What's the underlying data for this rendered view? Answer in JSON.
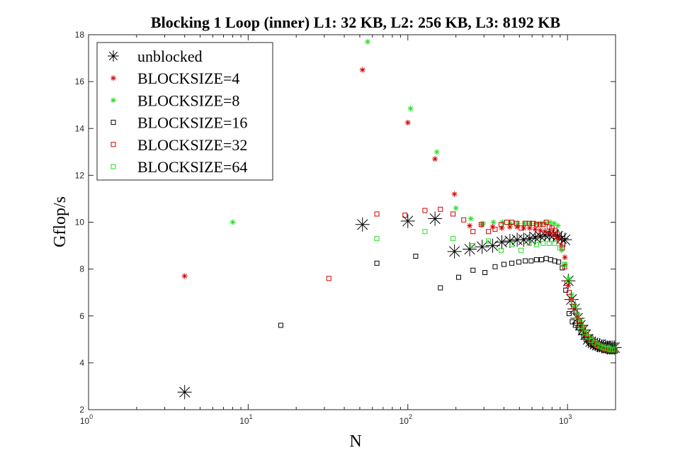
{
  "chart_data": {
    "type": "scatter",
    "title": "Blocking 1 Loop (inner) L1: 32 KB,   L2: 256 KB,   L3: 8192 KB",
    "xlabel": "N",
    "ylabel": "Gflop/s",
    "xscale": "log",
    "xlim": [
      1,
      2000
    ],
    "ylim": [
      2,
      18
    ],
    "x_ticks": [
      {
        "base": "10",
        "exp": "0",
        "value": 1
      },
      {
        "base": "10",
        "exp": "1",
        "value": 10
      },
      {
        "base": "10",
        "exp": "2",
        "value": 100
      },
      {
        "base": "10",
        "exp": "3",
        "value": 1000
      }
    ],
    "y_ticks": [
      "2",
      "4",
      "6",
      "8",
      "10",
      "12",
      "14",
      "16",
      "18"
    ],
    "grid": false,
    "legend_position": "top-left",
    "series": [
      {
        "name": "unblocked",
        "marker": "asterisk-large",
        "color": "#000000",
        "points": [
          [
            4,
            2.75
          ],
          [
            52,
            9.9
          ],
          [
            100,
            10.05
          ],
          [
            148,
            10.15
          ],
          [
            196,
            8.75
          ],
          [
            244,
            8.85
          ],
          [
            292,
            8.95
          ],
          [
            340,
            9.0
          ],
          [
            388,
            9.15
          ],
          [
            436,
            9.2
          ],
          [
            484,
            9.25
          ],
          [
            532,
            9.25
          ],
          [
            580,
            9.3
          ],
          [
            628,
            9.35
          ],
          [
            676,
            9.4
          ],
          [
            724,
            9.45
          ],
          [
            772,
            9.45
          ],
          [
            820,
            9.45
          ],
          [
            868,
            9.4
          ],
          [
            916,
            9.3
          ],
          [
            964,
            9.25
          ],
          [
            1012,
            7.5
          ],
          [
            1060,
            6.7
          ],
          [
            1108,
            6.3
          ],
          [
            1156,
            5.9
          ],
          [
            1204,
            5.6
          ],
          [
            1252,
            5.4
          ],
          [
            1300,
            5.2
          ],
          [
            1348,
            5.0
          ],
          [
            1396,
            4.9
          ],
          [
            1444,
            4.85
          ],
          [
            1492,
            4.8
          ],
          [
            1540,
            4.75
          ],
          [
            1588,
            4.75
          ],
          [
            1636,
            4.7
          ],
          [
            1684,
            4.7
          ],
          [
            1732,
            4.7
          ],
          [
            1780,
            4.65
          ],
          [
            1828,
            4.65
          ],
          [
            1876,
            4.65
          ],
          [
            1924,
            4.65
          ],
          [
            1972,
            4.65
          ]
        ]
      },
      {
        "name": "BLOCKSIZE=4",
        "marker": "asterisk",
        "color": "#d00000",
        "points": [
          [
            4,
            7.7
          ],
          [
            52,
            16.5
          ],
          [
            100,
            14.25
          ],
          [
            148,
            12.7
          ],
          [
            196,
            11.2
          ],
          [
            244,
            9.85
          ],
          [
            292,
            9.9
          ],
          [
            340,
            9.8
          ],
          [
            388,
            9.75
          ],
          [
            436,
            9.8
          ],
          [
            484,
            9.8
          ],
          [
            532,
            9.75
          ],
          [
            580,
            9.75
          ],
          [
            628,
            9.7
          ],
          [
            676,
            9.65
          ],
          [
            724,
            9.6
          ],
          [
            772,
            9.55
          ],
          [
            820,
            9.45
          ],
          [
            868,
            9.3
          ],
          [
            916,
            9.0
          ],
          [
            964,
            8.5
          ],
          [
            1012,
            7.3
          ],
          [
            1060,
            6.7
          ],
          [
            1108,
            6.4
          ],
          [
            1156,
            6.0
          ],
          [
            1204,
            5.7
          ],
          [
            1252,
            5.4
          ],
          [
            1300,
            5.2
          ],
          [
            1348,
            5.0
          ],
          [
            1396,
            4.9
          ],
          [
            1444,
            4.8
          ],
          [
            1492,
            4.75
          ],
          [
            1540,
            4.7
          ],
          [
            1588,
            4.65
          ],
          [
            1636,
            4.6
          ],
          [
            1684,
            4.6
          ],
          [
            1732,
            4.55
          ],
          [
            1780,
            4.55
          ],
          [
            1828,
            4.55
          ],
          [
            1876,
            4.55
          ],
          [
            1924,
            4.55
          ],
          [
            1972,
            4.55
          ]
        ]
      },
      {
        "name": "BLOCKSIZE=8",
        "marker": "asterisk",
        "color": "#22dd22",
        "points": [
          [
            8,
            10.0
          ],
          [
            56,
            17.7
          ],
          [
            104,
            14.85
          ],
          [
            152,
            13.0
          ],
          [
            200,
            10.6
          ],
          [
            248,
            10.15
          ],
          [
            296,
            9.95
          ],
          [
            344,
            10.0
          ],
          [
            392,
            10.0
          ],
          [
            440,
            9.95
          ],
          [
            488,
            9.95
          ],
          [
            536,
            9.95
          ],
          [
            584,
            9.95
          ],
          [
            632,
            9.95
          ],
          [
            680,
            9.95
          ],
          [
            728,
            9.95
          ],
          [
            776,
            10.0
          ],
          [
            824,
            9.95
          ],
          [
            872,
            9.85
          ],
          [
            920,
            8.8
          ],
          [
            968,
            8.2
          ],
          [
            1016,
            7.6
          ],
          [
            1064,
            6.9
          ],
          [
            1112,
            6.4
          ],
          [
            1160,
            6.1
          ],
          [
            1208,
            5.8
          ],
          [
            1256,
            5.5
          ],
          [
            1304,
            5.3
          ],
          [
            1352,
            5.1
          ],
          [
            1400,
            5.0
          ],
          [
            1448,
            4.9
          ],
          [
            1496,
            4.85
          ],
          [
            1544,
            4.8
          ],
          [
            1592,
            4.75
          ],
          [
            1640,
            4.7
          ],
          [
            1688,
            4.7
          ],
          [
            1736,
            4.65
          ],
          [
            1784,
            4.65
          ],
          [
            1832,
            4.65
          ],
          [
            1880,
            4.6
          ],
          [
            1928,
            4.6
          ],
          [
            1976,
            4.6
          ]
        ]
      },
      {
        "name": "BLOCKSIZE=16",
        "marker": "square",
        "color": "#000000",
        "points": [
          [
            16,
            5.6
          ],
          [
            64,
            8.25
          ],
          [
            112,
            8.55
          ],
          [
            160,
            7.2
          ],
          [
            208,
            7.65
          ],
          [
            256,
            7.95
          ],
          [
            304,
            7.85
          ],
          [
            352,
            8.1
          ],
          [
            400,
            8.2
          ],
          [
            448,
            8.25
          ],
          [
            496,
            8.3
          ],
          [
            544,
            8.35
          ],
          [
            592,
            8.35
          ],
          [
            640,
            8.4
          ],
          [
            688,
            8.4
          ],
          [
            736,
            8.45
          ],
          [
            784,
            8.4
          ],
          [
            832,
            8.35
          ],
          [
            880,
            8.3
          ],
          [
            928,
            8.05
          ],
          [
            976,
            7.1
          ],
          [
            1024,
            6.1
          ],
          [
            1072,
            5.75
          ],
          [
            1120,
            5.6
          ],
          [
            1168,
            5.5
          ],
          [
            1216,
            5.3
          ],
          [
            1264,
            5.15
          ],
          [
            1312,
            5.0
          ],
          [
            1360,
            4.9
          ],
          [
            1408,
            4.8
          ],
          [
            1456,
            4.75
          ],
          [
            1504,
            4.7
          ],
          [
            1552,
            4.65
          ],
          [
            1600,
            4.6
          ],
          [
            1648,
            4.6
          ],
          [
            1696,
            4.55
          ],
          [
            1744,
            4.55
          ],
          [
            1792,
            4.5
          ],
          [
            1840,
            4.5
          ],
          [
            1888,
            4.5
          ],
          [
            1936,
            4.5
          ],
          [
            1984,
            4.5
          ]
        ]
      },
      {
        "name": "BLOCKSIZE=32",
        "marker": "square",
        "color": "#d00000",
        "points": [
          [
            32,
            7.6
          ],
          [
            64,
            10.35
          ],
          [
            96,
            10.3
          ],
          [
            128,
            10.5
          ],
          [
            160,
            10.55
          ],
          [
            192,
            10.35
          ],
          [
            224,
            10.1
          ],
          [
            256,
            9.6
          ],
          [
            288,
            9.9
          ],
          [
            320,
            9.6
          ],
          [
            352,
            9.7
          ],
          [
            384,
            9.9
          ],
          [
            416,
            10.0
          ],
          [
            448,
            10.0
          ],
          [
            480,
            9.95
          ],
          [
            512,
            9.75
          ],
          [
            544,
            9.95
          ],
          [
            576,
            9.95
          ],
          [
            608,
            9.95
          ],
          [
            640,
            9.9
          ],
          [
            672,
            9.9
          ],
          [
            704,
            9.9
          ],
          [
            736,
            10.0
          ],
          [
            768,
            9.8
          ],
          [
            800,
            9.75
          ],
          [
            832,
            9.65
          ],
          [
            864,
            9.5
          ],
          [
            896,
            9.2
          ],
          [
            928,
            8.9
          ],
          [
            960,
            8.1
          ],
          [
            992,
            7.4
          ],
          [
            1024,
            7.0
          ],
          [
            1056,
            6.7
          ],
          [
            1088,
            6.4
          ],
          [
            1120,
            6.2
          ],
          [
            1152,
            6.0
          ],
          [
            1184,
            5.8
          ],
          [
            1216,
            5.6
          ],
          [
            1248,
            5.5
          ],
          [
            1280,
            5.3
          ],
          [
            1312,
            5.2
          ],
          [
            1344,
            5.1
          ],
          [
            1376,
            5.0
          ],
          [
            1408,
            4.95
          ],
          [
            1440,
            4.9
          ],
          [
            1472,
            4.85
          ],
          [
            1504,
            4.8
          ],
          [
            1536,
            4.75
          ],
          [
            1568,
            4.7
          ],
          [
            1600,
            4.7
          ],
          [
            1632,
            4.65
          ],
          [
            1664,
            4.65
          ],
          [
            1696,
            4.6
          ],
          [
            1728,
            4.6
          ],
          [
            1760,
            4.6
          ],
          [
            1792,
            4.55
          ],
          [
            1824,
            4.55
          ],
          [
            1856,
            4.55
          ],
          [
            1888,
            4.55
          ],
          [
            1920,
            4.55
          ],
          [
            1952,
            4.55
          ],
          [
            1984,
            4.55
          ]
        ]
      },
      {
        "name": "BLOCKSIZE=64",
        "marker": "square",
        "color": "#22dd22",
        "points": [
          [
            64,
            9.3
          ],
          [
            128,
            9.6
          ],
          [
            192,
            9.3
          ],
          [
            256,
            9.0
          ],
          [
            320,
            9.2
          ],
          [
            384,
            8.8
          ],
          [
            448,
            9.05
          ],
          [
            512,
            8.8
          ],
          [
            576,
            9.1
          ],
          [
            640,
            9.05
          ],
          [
            704,
            9.1
          ],
          [
            768,
            9.1
          ],
          [
            832,
            9.1
          ],
          [
            896,
            8.9
          ],
          [
            960,
            8.2
          ],
          [
            1024,
            7.5
          ],
          [
            1088,
            6.6
          ],
          [
            1152,
            6.0
          ],
          [
            1216,
            5.55
          ],
          [
            1280,
            5.3
          ],
          [
            1344,
            5.1
          ],
          [
            1408,
            4.95
          ],
          [
            1472,
            4.85
          ],
          [
            1536,
            4.75
          ],
          [
            1600,
            4.7
          ],
          [
            1664,
            4.65
          ],
          [
            1728,
            4.6
          ],
          [
            1792,
            4.6
          ],
          [
            1856,
            4.55
          ],
          [
            1920,
            4.55
          ],
          [
            1984,
            4.55
          ]
        ]
      }
    ]
  }
}
